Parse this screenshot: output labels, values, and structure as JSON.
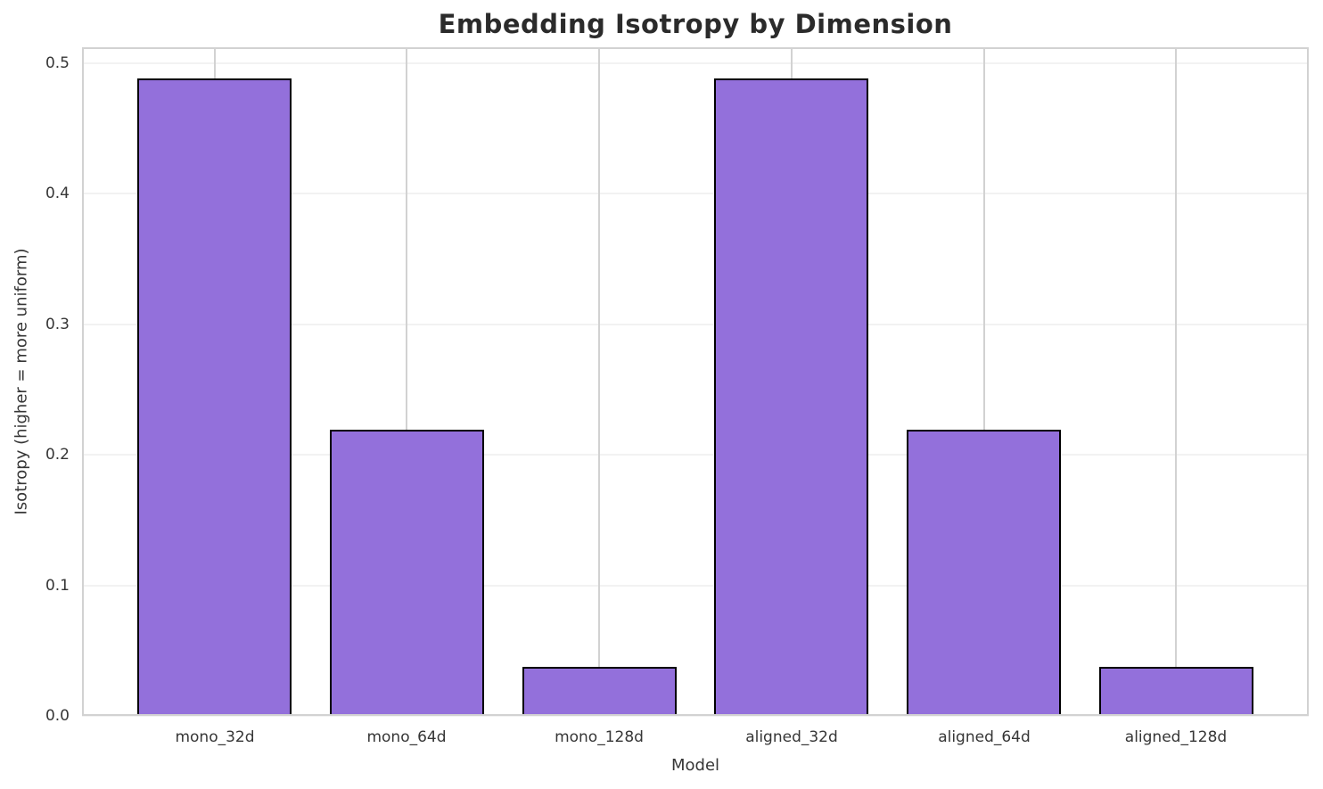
{
  "chart_data": {
    "type": "bar",
    "title": "Embedding Isotropy by Dimension",
    "xlabel": "Model",
    "ylabel": "Isotropy (higher = more uniform)",
    "categories": [
      "mono_32d",
      "mono_64d",
      "mono_128d",
      "aligned_32d",
      "aligned_64d",
      "aligned_128d"
    ],
    "values": [
      0.487,
      0.218,
      0.036,
      0.487,
      0.218,
      0.036
    ],
    "ylim": [
      0,
      0.512
    ],
    "yticks": [
      0.0,
      0.1,
      0.2,
      0.3,
      0.4,
      0.5
    ],
    "ytick_labels": [
      "0.0",
      "0.1",
      "0.2",
      "0.3",
      "0.4",
      "0.5"
    ],
    "grid": true,
    "legend": "none",
    "bar_width_fraction": 0.8,
    "colors": {
      "bar_fill": "#9370DB",
      "bar_edge": "#000000",
      "grid_horizontal": "#f2f2f2",
      "grid_vertical": "#d2d2d2",
      "spine": "#d2d2d2",
      "title_text": "#2b2b2b",
      "tick_text": "#363636",
      "background": "#ffffff"
    }
  }
}
